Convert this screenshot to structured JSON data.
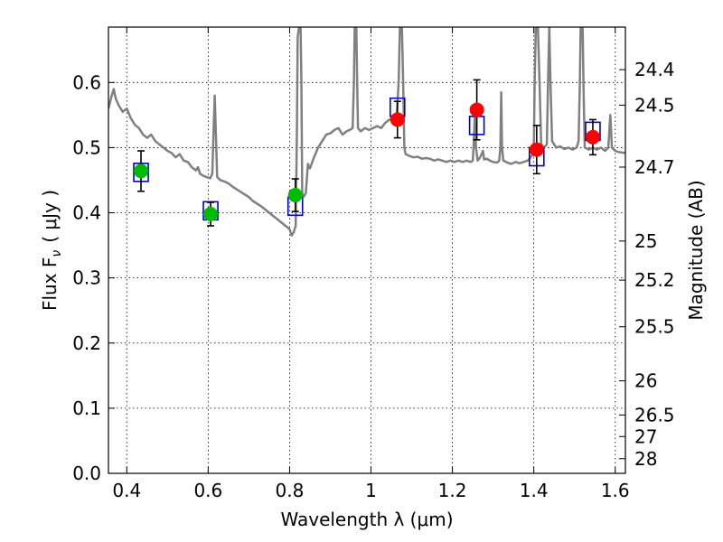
{
  "chart_data": {
    "type": "scatter",
    "xlabel": "Wavelength  λ (μm)",
    "ylabel": "Flux  F",
    "ylabel_sub": "ν",
    "ylabel_unit": "( μJy )",
    "y2label": "Magnitude (AB)",
    "xlim": [
      0.355,
      1.625
    ],
    "ylim": [
      0.0,
      0.685
    ],
    "grid": true,
    "x_ticks": [
      0.4,
      0.6,
      0.8,
      1.0,
      1.2,
      1.4,
      1.6
    ],
    "x_tick_labels": [
      "0.4",
      "0.6",
      "0.8",
      "1",
      "1.2",
      "1.4",
      "1.6"
    ],
    "y_ticks": [
      0.0,
      0.1,
      0.2,
      0.3,
      0.4,
      0.5,
      0.6
    ],
    "y_tick_labels": [
      "0.0",
      "0.1",
      "0.2",
      "0.3",
      "0.4",
      "0.5",
      "0.6"
    ],
    "mag_ticks": [
      {
        "label": "24.4",
        "flux": 0.6197
      },
      {
        "label": "24.5",
        "flux": 0.5652
      },
      {
        "label": "24.7",
        "flux": 0.4701
      },
      {
        "label": "25",
        "flux": 0.3566
      },
      {
        "label": "25.2",
        "flux": 0.2966
      },
      {
        "label": "25.5",
        "flux": 0.225
      },
      {
        "label": "26",
        "flux": 0.142
      },
      {
        "label": "26.5",
        "flux": 0.0896
      },
      {
        "label": "27",
        "flux": 0.0565
      },
      {
        "label": "28",
        "flux": 0.0225
      }
    ],
    "series": [
      {
        "color": "#00bb00",
        "points": [
          {
            "x": 0.435,
            "y": 0.464,
            "yerr": 0.031
          },
          {
            "x": 0.606,
            "y": 0.398,
            "yerr": 0.018
          },
          {
            "x": 0.814,
            "y": 0.427,
            "yerr": 0.025
          }
        ]
      },
      {
        "color": "#ff0000",
        "points": [
          {
            "x": 1.065,
            "y": 0.543,
            "yerr": 0.028
          },
          {
            "x": 1.26,
            "y": 0.558,
            "yerr": 0.046
          },
          {
            "x": 1.407,
            "y": 0.497,
            "yerr": 0.037
          },
          {
            "x": 1.545,
            "y": 0.516,
            "yerr": 0.027
          }
        ]
      }
    ],
    "model_fluxes": [
      {
        "x": 0.435,
        "y": 0.462
      },
      {
        "x": 0.606,
        "y": 0.403
      },
      {
        "x": 0.814,
        "y": 0.41
      },
      {
        "x": 1.065,
        "y": 0.562
      },
      {
        "x": 1.26,
        "y": 0.534
      },
      {
        "x": 1.407,
        "y": 0.486
      },
      {
        "x": 1.545,
        "y": 0.525
      }
    ],
    "spectrum": [
      [
        0.355,
        0.56
      ],
      [
        0.362,
        0.578
      ],
      [
        0.368,
        0.59
      ],
      [
        0.373,
        0.575
      ],
      [
        0.38,
        0.565
      ],
      [
        0.39,
        0.555
      ],
      [
        0.4,
        0.56
      ],
      [
        0.41,
        0.545
      ],
      [
        0.42,
        0.535
      ],
      [
        0.43,
        0.53
      ],
      [
        0.44,
        0.52
      ],
      [
        0.45,
        0.515
      ],
      [
        0.46,
        0.52
      ],
      [
        0.47,
        0.51
      ],
      [
        0.48,
        0.505
      ],
      [
        0.49,
        0.5
      ],
      [
        0.5,
        0.495
      ],
      [
        0.51,
        0.492
      ],
      [
        0.52,
        0.485
      ],
      [
        0.53,
        0.49
      ],
      [
        0.54,
        0.48
      ],
      [
        0.55,
        0.478
      ],
      [
        0.56,
        0.47
      ],
      [
        0.57,
        0.465
      ],
      [
        0.575,
        0.47
      ],
      [
        0.58,
        0.46
      ],
      [
        0.59,
        0.456
      ],
      [
        0.6,
        0.454
      ],
      [
        0.605,
        0.453
      ],
      [
        0.61,
        0.46
      ],
      [
        0.613,
        0.52
      ],
      [
        0.616,
        0.58
      ],
      [
        0.619,
        0.52
      ],
      [
        0.622,
        0.455
      ],
      [
        0.63,
        0.45
      ],
      [
        0.64,
        0.448
      ],
      [
        0.65,
        0.445
      ],
      [
        0.66,
        0.44
      ],
      [
        0.67,
        0.436
      ],
      [
        0.68,
        0.432
      ],
      [
        0.69,
        0.428
      ],
      [
        0.7,
        0.424
      ],
      [
        0.71,
        0.418
      ],
      [
        0.72,
        0.414
      ],
      [
        0.73,
        0.41
      ],
      [
        0.74,
        0.405
      ],
      [
        0.75,
        0.4
      ],
      [
        0.76,
        0.395
      ],
      [
        0.77,
        0.39
      ],
      [
        0.78,
        0.385
      ],
      [
        0.79,
        0.38
      ],
      [
        0.8,
        0.375
      ],
      [
        0.805,
        0.365
      ],
      [
        0.81,
        0.37
      ],
      [
        0.815,
        0.38
      ],
      [
        0.818,
        0.52
      ],
      [
        0.82,
        0.67
      ],
      [
        0.823,
        0.685
      ],
      [
        0.827,
        0.685
      ],
      [
        0.829,
        0.6
      ],
      [
        0.831,
        0.43
      ],
      [
        0.835,
        0.425
      ],
      [
        0.84,
        0.43
      ],
      [
        0.845,
        0.475
      ],
      [
        0.85,
        0.468
      ],
      [
        0.86,
        0.485
      ],
      [
        0.87,
        0.5
      ],
      [
        0.88,
        0.51
      ],
      [
        0.89,
        0.52
      ],
      [
        0.9,
        0.522
      ],
      [
        0.91,
        0.527
      ],
      [
        0.92,
        0.53
      ],
      [
        0.93,
        0.52
      ],
      [
        0.94,
        0.525
      ],
      [
        0.95,
        0.528
      ],
      [
        0.955,
        0.53
      ],
      [
        0.958,
        0.6
      ],
      [
        0.96,
        0.685
      ],
      [
        0.964,
        0.685
      ],
      [
        0.966,
        0.6
      ],
      [
        0.968,
        0.53
      ],
      [
        0.975,
        0.525
      ],
      [
        0.985,
        0.53
      ],
      [
        0.995,
        0.527
      ],
      [
        1.005,
        0.53
      ],
      [
        1.015,
        0.533
      ],
      [
        1.025,
        0.53
      ],
      [
        1.035,
        0.538
      ],
      [
        1.045,
        0.543
      ],
      [
        1.055,
        0.545
      ],
      [
        1.063,
        0.55
      ],
      [
        1.068,
        0.6
      ],
      [
        1.071,
        0.685
      ],
      [
        1.076,
        0.685
      ],
      [
        1.079,
        0.6
      ],
      [
        1.082,
        0.5
      ],
      [
        1.085,
        0.49
      ],
      [
        1.095,
        0.487
      ],
      [
        1.105,
        0.485
      ],
      [
        1.115,
        0.486
      ],
      [
        1.125,
        0.483
      ],
      [
        1.135,
        0.484
      ],
      [
        1.145,
        0.483
      ],
      [
        1.155,
        0.48
      ],
      [
        1.165,
        0.482
      ],
      [
        1.175,
        0.48
      ],
      [
        1.185,
        0.478
      ],
      [
        1.195,
        0.48
      ],
      [
        1.205,
        0.478
      ],
      [
        1.215,
        0.48
      ],
      [
        1.225,
        0.478
      ],
      [
        1.235,
        0.48
      ],
      [
        1.245,
        0.478
      ],
      [
        1.25,
        0.48
      ],
      [
        1.252,
        0.5
      ],
      [
        1.255,
        0.55
      ],
      [
        1.258,
        0.5
      ],
      [
        1.262,
        0.48
      ],
      [
        1.268,
        0.485
      ],
      [
        1.272,
        0.49
      ],
      [
        1.275,
        0.495
      ],
      [
        1.278,
        0.482
      ],
      [
        1.285,
        0.483
      ],
      [
        1.292,
        0.48
      ],
      [
        1.3,
        0.478
      ],
      [
        1.31,
        0.477
      ],
      [
        1.315,
        0.48
      ],
      [
        1.318,
        0.5
      ],
      [
        1.32,
        0.585
      ],
      [
        1.322,
        0.5
      ],
      [
        1.325,
        0.48
      ],
      [
        1.335,
        0.477
      ],
      [
        1.345,
        0.475
      ],
      [
        1.355,
        0.478
      ],
      [
        1.365,
        0.476
      ],
      [
        1.375,
        0.478
      ],
      [
        1.385,
        0.48
      ],
      [
        1.392,
        0.485
      ],
      [
        1.398,
        0.49
      ],
      [
        1.4,
        0.5
      ],
      [
        1.402,
        0.6
      ],
      [
        1.405,
        0.685
      ],
      [
        1.41,
        0.685
      ],
      [
        1.414,
        0.6
      ],
      [
        1.418,
        0.505
      ],
      [
        1.425,
        0.5
      ],
      [
        1.432,
        0.505
      ],
      [
        1.435,
        0.6
      ],
      [
        1.438,
        0.685
      ],
      [
        1.441,
        0.6
      ],
      [
        1.445,
        0.51
      ],
      [
        1.455,
        0.5
      ],
      [
        1.465,
        0.502
      ],
      [
        1.475,
        0.498
      ],
      [
        1.485,
        0.5
      ],
      [
        1.495,
        0.497
      ],
      [
        1.505,
        0.5
      ],
      [
        1.51,
        0.51
      ],
      [
        1.513,
        0.6
      ],
      [
        1.515,
        0.685
      ],
      [
        1.52,
        0.685
      ],
      [
        1.522,
        0.6
      ],
      [
        1.525,
        0.5
      ],
      [
        1.535,
        0.497
      ],
      [
        1.545,
        0.5
      ],
      [
        1.555,
        0.497
      ],
      [
        1.565,
        0.5
      ],
      [
        1.575,
        0.495
      ],
      [
        1.583,
        0.5
      ],
      [
        1.588,
        0.55
      ],
      [
        1.592,
        0.5
      ],
      [
        1.6,
        0.495
      ],
      [
        1.61,
        0.493
      ],
      [
        1.625,
        0.492
      ]
    ]
  }
}
